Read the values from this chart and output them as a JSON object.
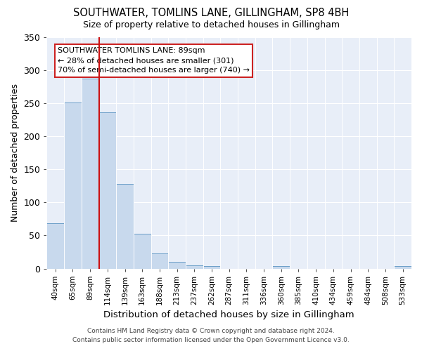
{
  "title": "SOUTHWATER, TOMLINS LANE, GILLINGHAM, SP8 4BH",
  "subtitle": "Size of property relative to detached houses in Gillingham",
  "xlabel": "Distribution of detached houses by size in Gillingham",
  "ylabel": "Number of detached properties",
  "bar_labels": [
    "40sqm",
    "65sqm",
    "89sqm",
    "114sqm",
    "139sqm",
    "163sqm",
    "188sqm",
    "213sqm",
    "237sqm",
    "262sqm",
    "287sqm",
    "311sqm",
    "336sqm",
    "360sqm",
    "385sqm",
    "410sqm",
    "434sqm",
    "459sqm",
    "484sqm",
    "508sqm",
    "533sqm"
  ],
  "bar_values": [
    68,
    251,
    287,
    236,
    128,
    53,
    23,
    10,
    5,
    4,
    0,
    0,
    0,
    4,
    0,
    0,
    0,
    0,
    0,
    0,
    4
  ],
  "bar_color": "#c8d9ed",
  "bar_edge_color": "#6b9ec8",
  "vline_color": "#cc1111",
  "annotation_text": "SOUTHWATER TOMLINS LANE: 89sqm\n← 28% of detached houses are smaller (301)\n70% of semi-detached houses are larger (740) →",
  "annotation_box_color": "#ffffff",
  "annotation_box_edge": "#cc2222",
  "ylim": [
    0,
    350
  ],
  "yticks": [
    0,
    50,
    100,
    150,
    200,
    250,
    300,
    350
  ],
  "bg_color": "#e8eef8",
  "footer1": "Contains HM Land Registry data © Crown copyright and database right 2024.",
  "footer2": "Contains public sector information licensed under the Open Government Licence v3.0."
}
